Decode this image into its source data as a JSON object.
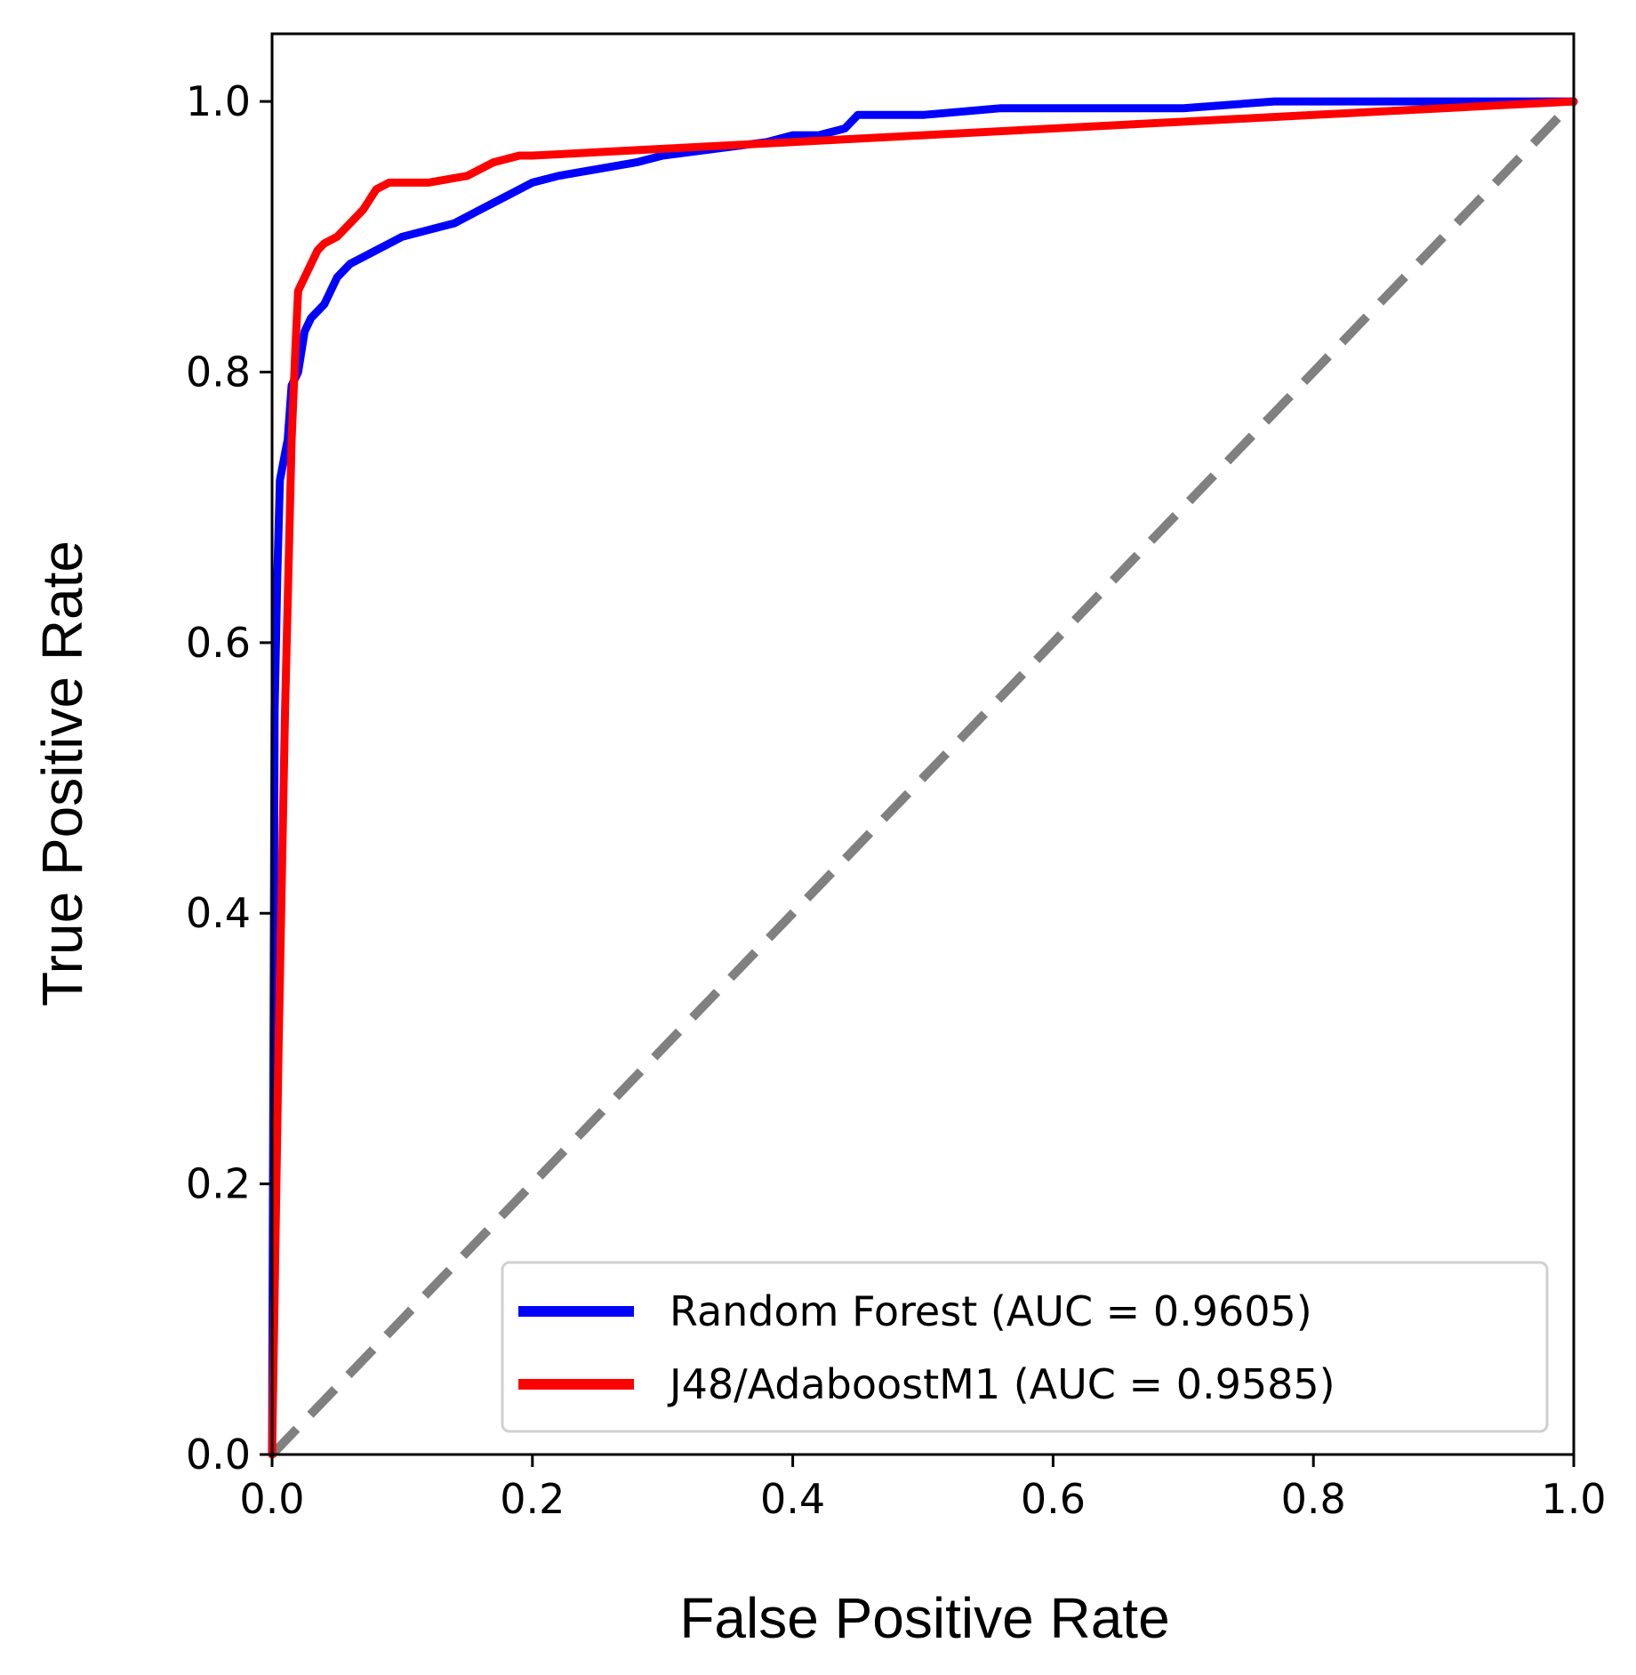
{
  "chart_data": {
    "type": "line",
    "title": "",
    "xlabel": "False Positive Rate",
    "ylabel": "True Positive Rate",
    "xlim": [
      0.0,
      1.0
    ],
    "ylim": [
      0.0,
      1.05
    ],
    "xticks": [
      "0.0",
      "0.2",
      "0.4",
      "0.6",
      "0.8",
      "1.0"
    ],
    "yticks": [
      "0.0",
      "0.2",
      "0.4",
      "0.6",
      "0.8",
      "1.0"
    ],
    "grid": false,
    "legend_position": "bottom-right",
    "series": [
      {
        "name": "Random Forest (AUC = 0.9605)",
        "color": "#0000ff",
        "x": [
          0.0,
          0.002,
          0.004,
          0.006,
          0.01,
          0.012,
          0.015,
          0.02,
          0.025,
          0.03,
          0.04,
          0.05,
          0.06,
          0.07,
          0.08,
          0.09,
          0.1,
          0.12,
          0.14,
          0.16,
          0.18,
          0.2,
          0.22,
          0.25,
          0.28,
          0.3,
          0.34,
          0.38,
          0.4,
          0.42,
          0.44,
          0.45,
          0.5,
          0.56,
          0.6,
          0.7,
          0.77,
          0.8,
          0.83,
          0.9,
          1.0
        ],
        "y": [
          0.0,
          0.55,
          0.65,
          0.72,
          0.74,
          0.75,
          0.79,
          0.8,
          0.83,
          0.84,
          0.85,
          0.87,
          0.88,
          0.885,
          0.89,
          0.895,
          0.9,
          0.905,
          0.91,
          0.92,
          0.93,
          0.94,
          0.945,
          0.95,
          0.955,
          0.96,
          0.965,
          0.97,
          0.975,
          0.975,
          0.98,
          0.99,
          0.99,
          0.995,
          0.995,
          0.995,
          1.0,
          1.0,
          1.0,
          1.0,
          1.0
        ]
      },
      {
        "name": "J48/AdaboostM1 (AUC = 0.9585)",
        "color": "#ff0000",
        "x": [
          0.0,
          0.005,
          0.01,
          0.015,
          0.018,
          0.02,
          0.025,
          0.03,
          0.035,
          0.04,
          0.05,
          0.06,
          0.07,
          0.08,
          0.09,
          0.1,
          0.12,
          0.15,
          0.17,
          0.19,
          0.2,
          0.3,
          0.4,
          0.5,
          0.6,
          0.7,
          0.8,
          0.9,
          1.0
        ],
        "y": [
          0.0,
          0.3,
          0.55,
          0.75,
          0.82,
          0.86,
          0.87,
          0.88,
          0.89,
          0.895,
          0.9,
          0.91,
          0.92,
          0.935,
          0.94,
          0.94,
          0.94,
          0.945,
          0.955,
          0.96,
          0.96,
          0.965,
          0.97,
          0.975,
          0.98,
          0.985,
          0.99,
          0.995,
          1.0
        ]
      }
    ],
    "reference_line": {
      "x": [
        0.0,
        1.0
      ],
      "y": [
        0.0,
        1.0
      ],
      "color": "#808080",
      "style": "dashed"
    }
  }
}
